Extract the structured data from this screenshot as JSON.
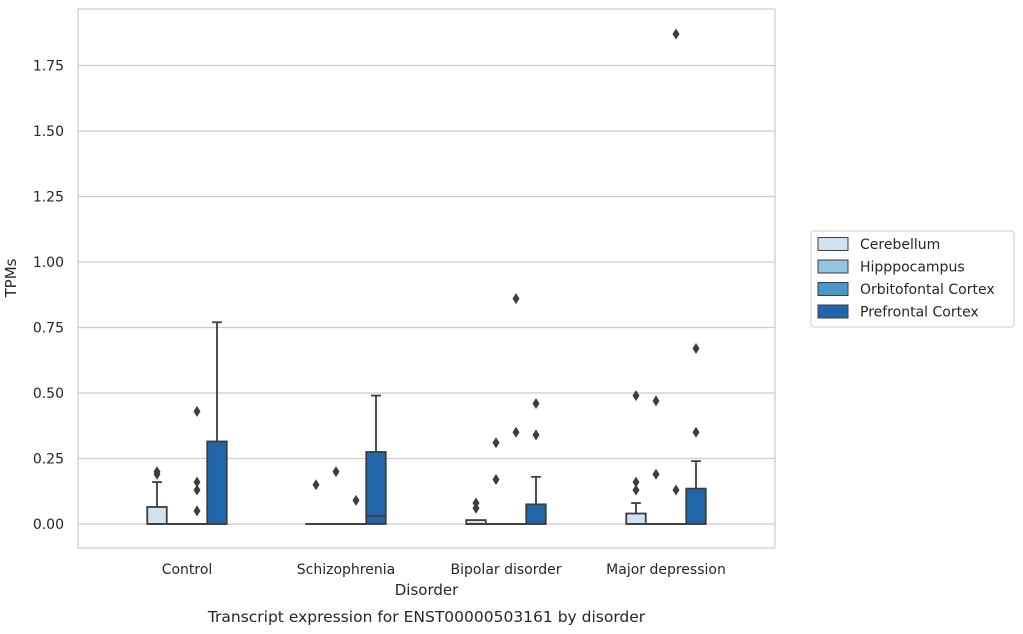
{
  "chart_data": {
    "type": "box",
    "title": "",
    "caption": "Transcript expression for ENST00000503161 by disorder",
    "xlabel": "Disorder",
    "ylabel": "TPMs",
    "ylim": [
      -0.09,
      1.96
    ],
    "yticks": [
      0.0,
      0.25,
      0.5,
      0.75,
      1.0,
      1.25,
      1.5,
      1.75
    ],
    "ytick_labels": [
      "0.00",
      "0.25",
      "0.50",
      "0.75",
      "1.00",
      "1.25",
      "1.50",
      "1.75"
    ],
    "grid": true,
    "legend_position": "right",
    "categories": [
      "Control",
      "Schizophrenia",
      "Bipolar disorder",
      "Major depression"
    ],
    "series": [
      {
        "name": "Cerebellum",
        "color": "#d0e1f2",
        "boxes": [
          {
            "q1": 0.0,
            "median": 0.0,
            "q3": 0.065,
            "whisker_low": 0.0,
            "whisker_high": 0.16,
            "outliers": [
              0.19,
              0.2
            ]
          },
          {
            "q1": 0.0,
            "median": 0.0,
            "q3": 0.0,
            "whisker_low": 0.0,
            "whisker_high": 0.0,
            "outliers": [
              0.15
            ]
          },
          {
            "q1": 0.0,
            "median": 0.0,
            "q3": 0.015,
            "whisker_low": 0.0,
            "whisker_high": 0.015,
            "outliers": [
              0.06,
              0.08
            ]
          },
          {
            "q1": 0.0,
            "median": 0.0,
            "q3": 0.04,
            "whisker_low": 0.0,
            "whisker_high": 0.08,
            "outliers": [
              0.13,
              0.16,
              0.49
            ]
          }
        ]
      },
      {
        "name": "Hipppocampus",
        "color": "#94c4df",
        "boxes": [
          {
            "q1": 0.0,
            "median": 0.0,
            "q3": 0.0,
            "whisker_low": 0.0,
            "whisker_high": 0.0,
            "outliers": []
          },
          {
            "q1": 0.0,
            "median": 0.0,
            "q3": 0.0,
            "whisker_low": 0.0,
            "whisker_high": 0.0,
            "outliers": [
              0.2
            ]
          },
          {
            "q1": 0.0,
            "median": 0.0,
            "q3": 0.0,
            "whisker_low": 0.0,
            "whisker_high": 0.0,
            "outliers": [
              0.17,
              0.31
            ]
          },
          {
            "q1": 0.0,
            "median": 0.0,
            "q3": 0.0,
            "whisker_low": 0.0,
            "whisker_high": 0.0,
            "outliers": [
              0.19,
              0.47
            ]
          }
        ]
      },
      {
        "name": "Orbitofontal Cortex",
        "color": "#4a98c9",
        "boxes": [
          {
            "q1": 0.0,
            "median": 0.0,
            "q3": 0.0,
            "whisker_low": 0.0,
            "whisker_high": 0.0,
            "outliers": [
              0.05,
              0.13,
              0.16,
              0.43
            ]
          },
          {
            "q1": 0.0,
            "median": 0.0,
            "q3": 0.0,
            "whisker_low": 0.0,
            "whisker_high": 0.0,
            "outliers": [
              0.09
            ]
          },
          {
            "q1": 0.0,
            "median": 0.0,
            "q3": 0.0,
            "whisker_low": 0.0,
            "whisker_high": 0.0,
            "outliers": [
              0.35,
              0.86
            ]
          },
          {
            "q1": 0.0,
            "median": 0.0,
            "q3": 0.0,
            "whisker_low": 0.0,
            "whisker_high": 0.0,
            "outliers": [
              0.13,
              1.87
            ]
          }
        ]
      },
      {
        "name": "Prefrontal Cortex",
        "color": "#2166ac",
        "boxes": [
          {
            "q1": 0.0,
            "median": 0.0,
            "q3": 0.315,
            "whisker_low": 0.0,
            "whisker_high": 0.77,
            "outliers": []
          },
          {
            "q1": 0.0,
            "median": 0.03,
            "q3": 0.275,
            "whisker_low": 0.0,
            "whisker_high": 0.49,
            "outliers": []
          },
          {
            "q1": 0.0,
            "median": 0.0,
            "q3": 0.075,
            "whisker_low": 0.0,
            "whisker_high": 0.18,
            "outliers": [
              0.34,
              0.46
            ]
          },
          {
            "q1": 0.0,
            "median": 0.0,
            "q3": 0.135,
            "whisker_low": 0.0,
            "whisker_high": 0.24,
            "outliers": [
              0.35,
              0.67
            ]
          }
        ]
      }
    ]
  }
}
